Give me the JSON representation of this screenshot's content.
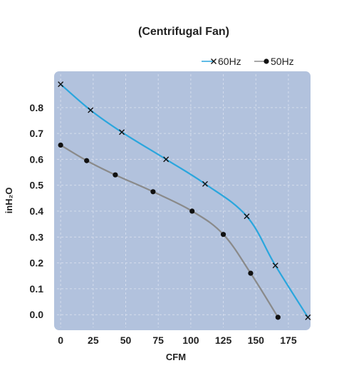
{
  "chart_data": {
    "type": "line",
    "title": "(Centrifugal Fan)",
    "xlabel": "CFM",
    "ylabel": "inH₂O",
    "xlim": [
      -5,
      192
    ],
    "ylim": [
      -0.06,
      0.94
    ],
    "xticks": [
      0,
      25,
      50,
      75,
      100,
      125,
      150,
      175
    ],
    "yticks": [
      0.0,
      0.1,
      0.2,
      0.3,
      0.4,
      0.5,
      0.6,
      0.7,
      0.8
    ],
    "ytick_labels": [
      "0.0",
      "0.1",
      "0.2",
      "0.3",
      "0.4",
      "0.5",
      "0.6",
      "0.7",
      "0.8"
    ],
    "grid": true,
    "legend_position": "top-right",
    "colors": {
      "plot_background": "#b2c2dd",
      "grid": "#d4dcec",
      "tick_text": "#222222"
    },
    "series": [
      {
        "name": "60Hz",
        "marker": "x",
        "color": "#2aa6dd",
        "x": [
          0,
          23,
          47,
          81,
          111,
          143,
          165,
          190
        ],
        "y": [
          0.89,
          0.79,
          0.705,
          0.6,
          0.505,
          0.38,
          0.19,
          -0.01
        ]
      },
      {
        "name": "50Hz",
        "marker": "dot",
        "color": "#8a8a8a",
        "x": [
          0,
          20,
          42,
          71,
          101,
          125,
          146,
          167
        ],
        "y": [
          0.655,
          0.595,
          0.54,
          0.475,
          0.4,
          0.31,
          0.16,
          -0.01
        ]
      }
    ]
  }
}
